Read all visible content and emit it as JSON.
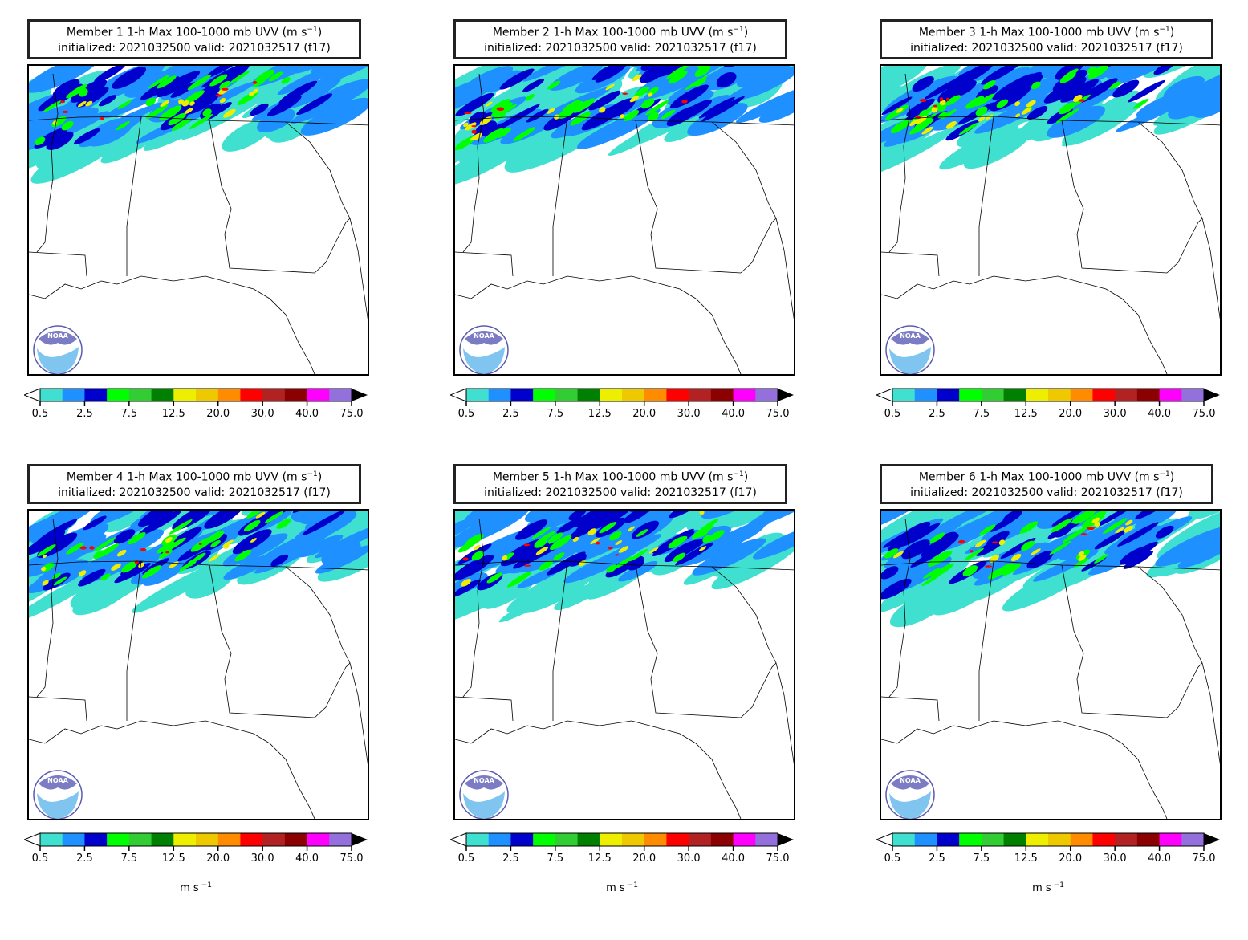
{
  "panels": [
    {
      "member": "Member 1",
      "title_line1": "Member 1 1-h Max 100-1000 mb UVV (m s",
      "title_sup": "−1",
      "title_close": ")",
      "title_line2": "initialized: 2021032500 valid: 2021032517 (f17)"
    },
    {
      "member": "Member 2",
      "title_line1": "Member 2 1-h Max 100-1000 mb UVV (m s",
      "title_sup": "−1",
      "title_close": ")",
      "title_line2": "initialized: 2021032500 valid: 2021032517 (f17)"
    },
    {
      "member": "Member 3",
      "title_line1": "Member 3 1-h Max 100-1000 mb UVV (m s",
      "title_sup": "−1",
      "title_close": ")",
      "title_line2": "initialized: 2021032500 valid: 2021032517 (f17)"
    },
    {
      "member": "Member 4",
      "title_line1": "Member 4 1-h Max 100-1000 mb UVV (m s",
      "title_sup": "−1",
      "title_close": ")",
      "title_line2": "initialized: 2021032500 valid: 2021032517 (f17)"
    },
    {
      "member": "Member 5",
      "title_line1": "Member 5 1-h Max 100-1000 mb UVV (m s",
      "title_sup": "−1",
      "title_close": ")",
      "title_line2": "initialized: 2021032500 valid: 2021032517 (f17)"
    },
    {
      "member": "Member 6",
      "title_line1": "Member 6 1-h Max 100-1000 mb UVV (m s",
      "title_sup": "−1",
      "title_close": ")",
      "title_line2": "initialized: 2021032500 valid: 2021032517 (f17)"
    }
  ],
  "colorbar": {
    "tick_labels": [
      "0.5",
      "2.5",
      "7.5",
      "12.5",
      "20.0",
      "30.0",
      "40.0",
      "75.0"
    ],
    "colors": [
      "#40e0d0",
      "#1e90ff",
      "#0000cd",
      "#00ff00",
      "#32cd32",
      "#008000",
      "#eeee00",
      "#eec900",
      "#ff8c00",
      "#ff0000",
      "#b22222",
      "#8b0000",
      "#ff00ff",
      "#9370db"
    ],
    "units_text": "m s",
    "units_sup": "−1"
  },
  "logo_text": "NOAA"
}
